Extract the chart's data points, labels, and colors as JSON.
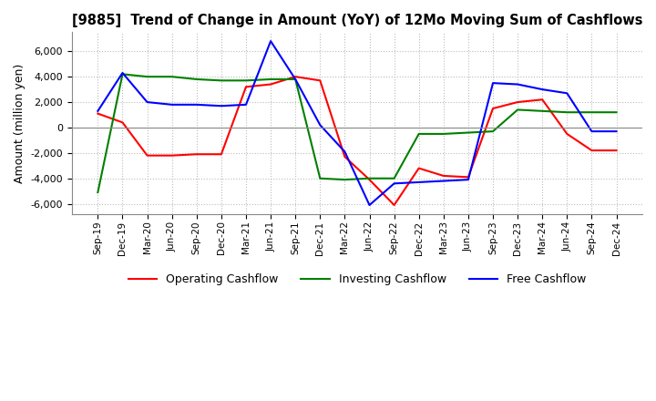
{
  "title": "[9885]  Trend of Change in Amount (YoY) of 12Mo Moving Sum of Cashflows",
  "ylabel": "Amount (million yen)",
  "ylim": [
    -6800,
    7500
  ],
  "yticks": [
    -6000,
    -4000,
    -2000,
    0,
    2000,
    4000,
    6000
  ],
  "background_color": "#ffffff",
  "grid_color": "#bbbbbb",
  "x_labels": [
    "Sep-19",
    "Dec-19",
    "Mar-20",
    "Jun-20",
    "Sep-20",
    "Dec-20",
    "Mar-21",
    "Jun-21",
    "Sep-21",
    "Dec-21",
    "Mar-22",
    "Jun-22",
    "Sep-22",
    "Dec-22",
    "Mar-23",
    "Jun-23",
    "Sep-23",
    "Dec-23",
    "Mar-24",
    "Jun-24",
    "Sep-24",
    "Dec-24"
  ],
  "operating": [
    1100,
    400,
    -2200,
    -2200,
    -2100,
    -2100,
    3200,
    3400,
    4000,
    3700,
    -2300,
    -4100,
    -6100,
    -3200,
    -3800,
    -3900,
    1500,
    2000,
    2200,
    -500,
    -1800,
    -1800
  ],
  "investing": [
    -5100,
    4200,
    4000,
    4000,
    3800,
    3700,
    3700,
    3800,
    3800,
    -4000,
    -4100,
    -4000,
    -4000,
    -500,
    -500,
    -400,
    -300,
    1400,
    1300,
    1200,
    1200,
    1200
  ],
  "free": [
    1300,
    4300,
    2000,
    1800,
    1800,
    1700,
    1800,
    6800,
    3800,
    200,
    -1900,
    -6100,
    -4400,
    -4300,
    -4200,
    -4100,
    3500,
    3400,
    3000,
    2700,
    -300,
    -300
  ],
  "operating_color": "#ff0000",
  "investing_color": "#008000",
  "free_color": "#0000ff",
  "line_width": 1.5
}
